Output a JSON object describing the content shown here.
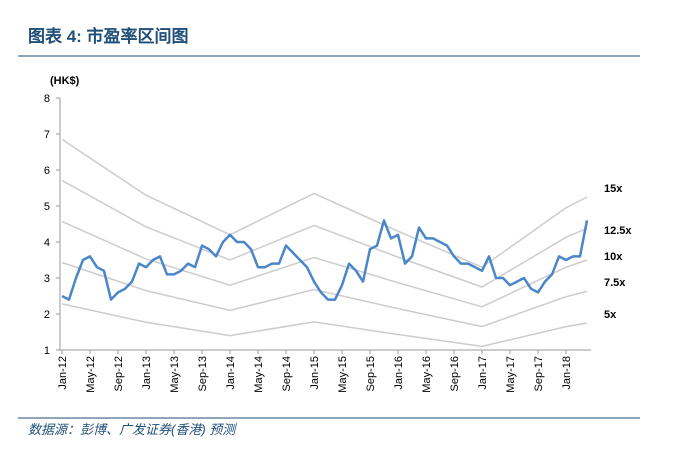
{
  "chart_data": {
    "type": "line",
    "title": "图表 4: 市盈率区间图",
    "y_label": "(HK$)",
    "source": "数据源：彭博、广发证券(香港) 预测",
    "categories": [
      "Jan-12",
      null,
      null,
      null,
      "May-12",
      null,
      null,
      null,
      "Sep-12",
      null,
      null,
      null,
      "Jan-13",
      null,
      null,
      null,
      "May-13",
      null,
      null,
      null,
      "Sep-13",
      null,
      null,
      null,
      "Jan-14",
      null,
      null,
      null,
      "May-14",
      null,
      null,
      null,
      "Sep-14",
      null,
      null,
      null,
      "Jan-15",
      null,
      null,
      null,
      "May-15",
      null,
      null,
      null,
      "Sep-15",
      null,
      null,
      null,
      "Jan-16",
      null,
      null,
      null,
      "May-16",
      null,
      null,
      null,
      "Sep-16",
      null,
      null,
      null,
      "Jan-17",
      null,
      null,
      null,
      "May-17",
      null,
      null,
      null,
      "Sep-17",
      null,
      null,
      null,
      "Jan-18",
      null,
      null,
      null
    ],
    "ylim": [
      1,
      8
    ],
    "yticks": [
      1,
      2,
      3,
      4,
      5,
      6,
      7,
      8
    ],
    "series": [
      {
        "color": "#4a86c8",
        "values": [
          2.5,
          2.4,
          3.0,
          3.5,
          3.6,
          3.3,
          3.2,
          2.4,
          2.6,
          2.7,
          2.9,
          3.4,
          3.3,
          3.5,
          3.6,
          3.1,
          3.1,
          3.2,
          3.4,
          3.3,
          3.9,
          3.8,
          3.6,
          4.0,
          4.2,
          4.0,
          4.0,
          3.8,
          3.3,
          3.3,
          3.4,
          3.4,
          3.9,
          3.7,
          3.5,
          3.3,
          2.9,
          2.6,
          2.4,
          2.4,
          2.8,
          3.4,
          3.2,
          2.9,
          3.8,
          3.9,
          4.6,
          4.1,
          4.2,
          3.4,
          3.6,
          4.4,
          4.1,
          4.1,
          4.0,
          3.9,
          3.6,
          3.4,
          3.4,
          3.3,
          3.2,
          3.6,
          3.0,
          3.0,
          2.8,
          2.9,
          3.0,
          2.7,
          2.6,
          2.9,
          3.1,
          3.6,
          3.5,
          3.6,
          3.6,
          4.6
        ]
      },
      {
        "name": "15x",
        "color": "#cccccc",
        "x": [
          "Jan-12",
          "Jan-13",
          "Jan-14",
          "Jan-15",
          "Jan-16",
          "Jan-17",
          "Jan-18",
          "Apr-18"
        ],
        "values": [
          6.85,
          5.3,
          4.2,
          5.35,
          4.3,
          3.3,
          4.95,
          5.25
        ]
      },
      {
        "name": "12.5x",
        "color": "#cccccc",
        "x": [
          "Jan-12",
          "Jan-13",
          "Jan-14",
          "Jan-15",
          "Jan-16",
          "Jan-17",
          "Jan-18",
          "Apr-18"
        ],
        "values": [
          5.71,
          4.42,
          3.5,
          4.46,
          3.58,
          2.75,
          4.13,
          4.38
        ]
      },
      {
        "name": "10x",
        "color": "#cccccc",
        "x": [
          "Jan-12",
          "Jan-13",
          "Jan-14",
          "Jan-15",
          "Jan-16",
          "Jan-17",
          "Jan-18",
          "Apr-18"
        ],
        "values": [
          4.57,
          3.53,
          2.8,
          3.57,
          2.87,
          2.2,
          3.3,
          3.5
        ]
      },
      {
        "name": "7.5x",
        "color": "#cccccc",
        "x": [
          "Jan-12",
          "Jan-13",
          "Jan-14",
          "Jan-15",
          "Jan-16",
          "Jan-17",
          "Jan-18",
          "Apr-18"
        ],
        "values": [
          3.43,
          2.65,
          2.1,
          2.68,
          2.15,
          1.65,
          2.48,
          2.63
        ]
      },
      {
        "name": "5x",
        "color": "#cccccc",
        "x": [
          "Jan-12",
          "Jan-13",
          "Jan-14",
          "Jan-15",
          "Jan-16",
          "Jan-17",
          "Jan-18",
          "Apr-18"
        ],
        "values": [
          2.28,
          1.77,
          1.4,
          1.78,
          1.43,
          1.1,
          1.65,
          1.75
        ]
      }
    ]
  }
}
